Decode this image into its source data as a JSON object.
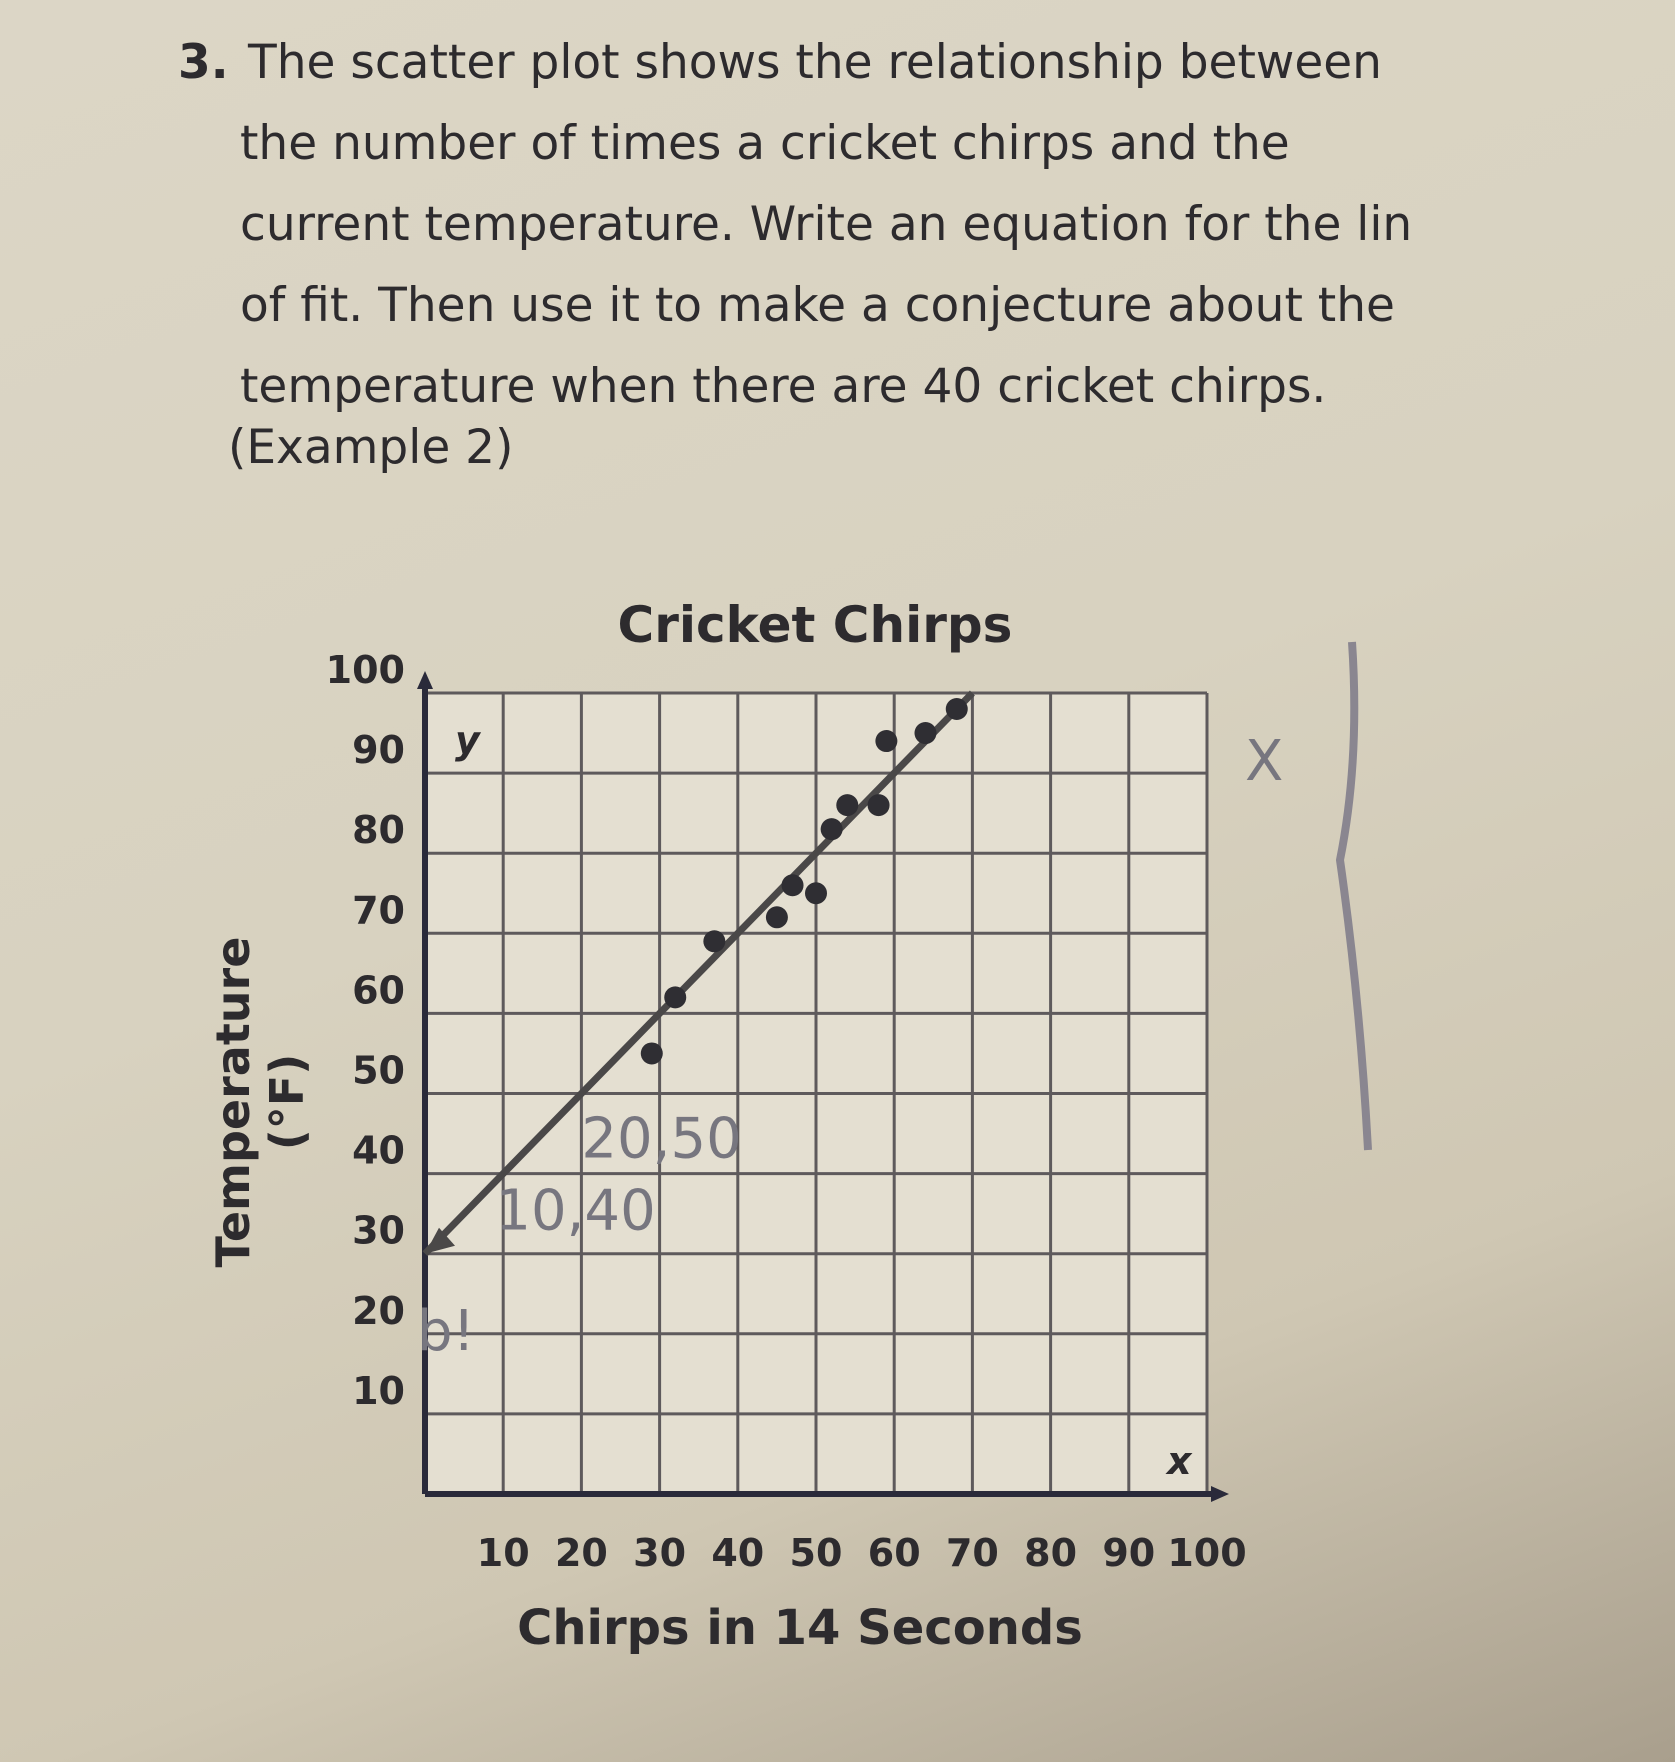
{
  "question": {
    "number": "3.",
    "lines": [
      "The scatter plot shows the relationship between",
      "the number of times a cricket chirps and the",
      "current temperature. Write an equation for the lin",
      "of fit. Then use it to make a conjecture about the",
      "temperature when there are 40 cricket chirps."
    ],
    "reference": "(Example 2)"
  },
  "chart_data": {
    "type": "scatter",
    "title": "Cricket Chirps",
    "xlabel": "Chirps in 14 Seconds",
    "ylabel": "Temperature (°F)",
    "x_axis_letter": "x",
    "y_axis_letter": "y",
    "xlim": [
      0,
      100
    ],
    "ylim": [
      0,
      100
    ],
    "xticks": [
      10,
      20,
      30,
      40,
      50,
      60,
      70,
      80,
      90,
      100
    ],
    "yticks": [
      10,
      20,
      30,
      40,
      50,
      60,
      70,
      80,
      90,
      100
    ],
    "grid": true,
    "points": [
      {
        "x": 29,
        "y": 55
      },
      {
        "x": 32,
        "y": 62
      },
      {
        "x": 37,
        "y": 69
      },
      {
        "x": 45,
        "y": 72
      },
      {
        "x": 47,
        "y": 76
      },
      {
        "x": 50,
        "y": 75
      },
      {
        "x": 52,
        "y": 83
      },
      {
        "x": 54,
        "y": 86
      },
      {
        "x": 58,
        "y": 86
      },
      {
        "x": 59,
        "y": 94
      },
      {
        "x": 64,
        "y": 95
      },
      {
        "x": 68,
        "y": 98
      }
    ],
    "fit_line": {
      "from": {
        "x": 0,
        "y": 30
      },
      "to": {
        "x": 70,
        "y": 100
      }
    },
    "handwritten_annotations": [
      "20,50",
      "10,40",
      "b!",
      "X"
    ],
    "colors": {
      "points": "#2f2e33",
      "grid": "#5e5a5c",
      "axis": "#2a2a3a",
      "handwriting": "#77767f"
    }
  }
}
